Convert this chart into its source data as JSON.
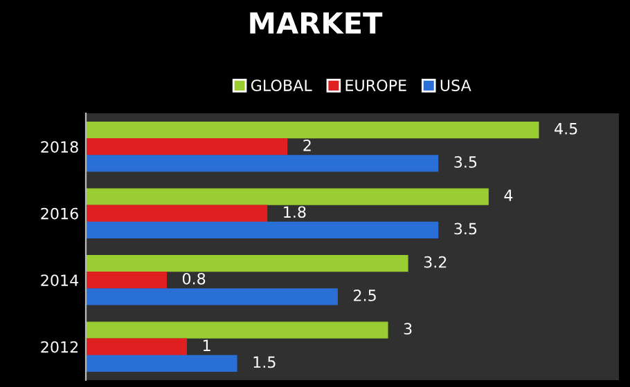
{
  "chart_data": {
    "type": "bar",
    "orientation": "horizontal",
    "title": "MARKET",
    "categories": [
      "2018",
      "2016",
      "2014",
      "2012"
    ],
    "series": [
      {
        "name": "GLOBAL",
        "color": "#9acd32",
        "values": [
          4.5,
          4,
          3.2,
          3
        ]
      },
      {
        "name": "EUROPE",
        "color": "#e02020",
        "values": [
          2,
          1.8,
          0.8,
          1
        ]
      },
      {
        "name": "USA",
        "color": "#2a6fd6",
        "values": [
          3.5,
          3.5,
          2.5,
          1.5
        ]
      }
    ],
    "xlim": [
      0,
      5.3
    ],
    "tick_labels": "y",
    "data_labels": true,
    "grid": false,
    "legend": "top"
  }
}
